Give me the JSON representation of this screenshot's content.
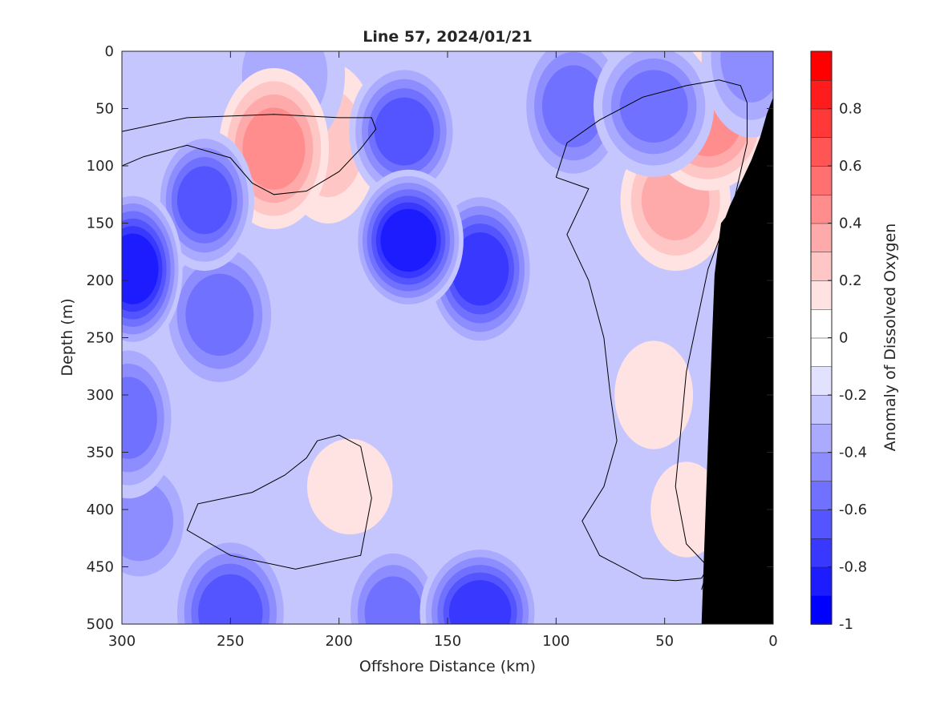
{
  "chart_data": {
    "type": "heatmap",
    "title": "Line 57, 2024/01/21",
    "xlabel": "Offshore Distance (km)",
    "ylabel": "Depth (m)",
    "colorbar_label": "Anomaly of Dissolved Oxygen",
    "xlim": [
      300,
      0
    ],
    "ylim": [
      500,
      0
    ],
    "x_ticks": [
      300,
      250,
      200,
      150,
      100,
      50,
      0
    ],
    "y_ticks": [
      0,
      50,
      100,
      150,
      200,
      250,
      300,
      350,
      400,
      450,
      500
    ],
    "x_tick_labels": [
      "300",
      "250",
      "200",
      "150",
      "100",
      "50",
      "0"
    ],
    "y_tick_labels": [
      "0",
      "50",
      "100",
      "150",
      "200",
      "250",
      "300",
      "350",
      "400",
      "450",
      "500"
    ],
    "colorbar_range": [
      -1,
      1
    ],
    "colorbar_ticks": [
      0.8,
      0.6,
      0.4,
      0.2,
      0,
      -0.2,
      -0.4,
      -0.6,
      -0.8,
      -1
    ],
    "colorbar_tick_labels": [
      "0.8",
      "0.6",
      "0.4",
      "0.2",
      "0",
      "-0.2",
      "-0.4",
      "-0.6",
      "-0.8",
      "-1"
    ],
    "colormap": [
      "#0000ff",
      "#1c1cff",
      "#3838ff",
      "#5555ff",
      "#7171ff",
      "#8d8dff",
      "#aaaaff",
      "#c6c6ff",
      "#e2e2ff",
      "#ffffff",
      "#ffffff",
      "#ffe2e2",
      "#ffc6c6",
      "#ffaaaa",
      "#ff8d8d",
      "#ff7171",
      "#ff5555",
      "#ff3838",
      "#ff1c1c",
      "#ff0000"
    ],
    "zero_contour": true,
    "bathymetry_color": "#000000",
    "bathymetry": {
      "x": [
        33,
        30,
        27,
        24,
        22,
        20,
        15,
        10,
        6,
        3,
        0
      ],
      "depth": [
        500,
        340,
        195,
        150,
        145,
        135,
        115,
        95,
        75,
        55,
        40
      ]
    },
    "features": [
      {
        "x": 230,
        "depth": 85,
        "value": 0.45
      },
      {
        "x": 205,
        "depth": 80,
        "value": 0.2
      },
      {
        "x": 30,
        "depth": 60,
        "value": 0.45
      },
      {
        "x": 45,
        "depth": 130,
        "value": 0.35
      },
      {
        "x": 8,
        "depth": 55,
        "value": 0.4
      },
      {
        "x": 55,
        "depth": 300,
        "value": 0.15
      },
      {
        "x": 40,
        "depth": 400,
        "value": 0.12
      },
      {
        "x": 195,
        "depth": 380,
        "value": 0.15
      },
      {
        "x": 295,
        "depth": 190,
        "value": -0.85
      },
      {
        "x": 262,
        "depth": 130,
        "value": -0.7
      },
      {
        "x": 255,
        "depth": 230,
        "value": -0.55
      },
      {
        "x": 168,
        "depth": 165,
        "value": -0.85
      },
      {
        "x": 170,
        "depth": 70,
        "value": -0.65
      },
      {
        "x": 135,
        "depth": 190,
        "value": -0.75
      },
      {
        "x": 135,
        "depth": 490,
        "value": -0.75
      },
      {
        "x": 250,
        "depth": 490,
        "value": -0.65
      },
      {
        "x": 175,
        "depth": 490,
        "value": -0.55
      },
      {
        "x": 92,
        "depth": 48,
        "value": -0.6
      },
      {
        "x": 55,
        "depth": 48,
        "value": -0.6
      },
      {
        "x": 297,
        "depth": 320,
        "value": -0.6
      },
      {
        "x": 292,
        "depth": 410,
        "value": -0.5
      },
      {
        "x": 10,
        "depth": 5,
        "value": -0.45
      },
      {
        "x": 225,
        "depth": 20,
        "value": -0.35
      }
    ]
  }
}
